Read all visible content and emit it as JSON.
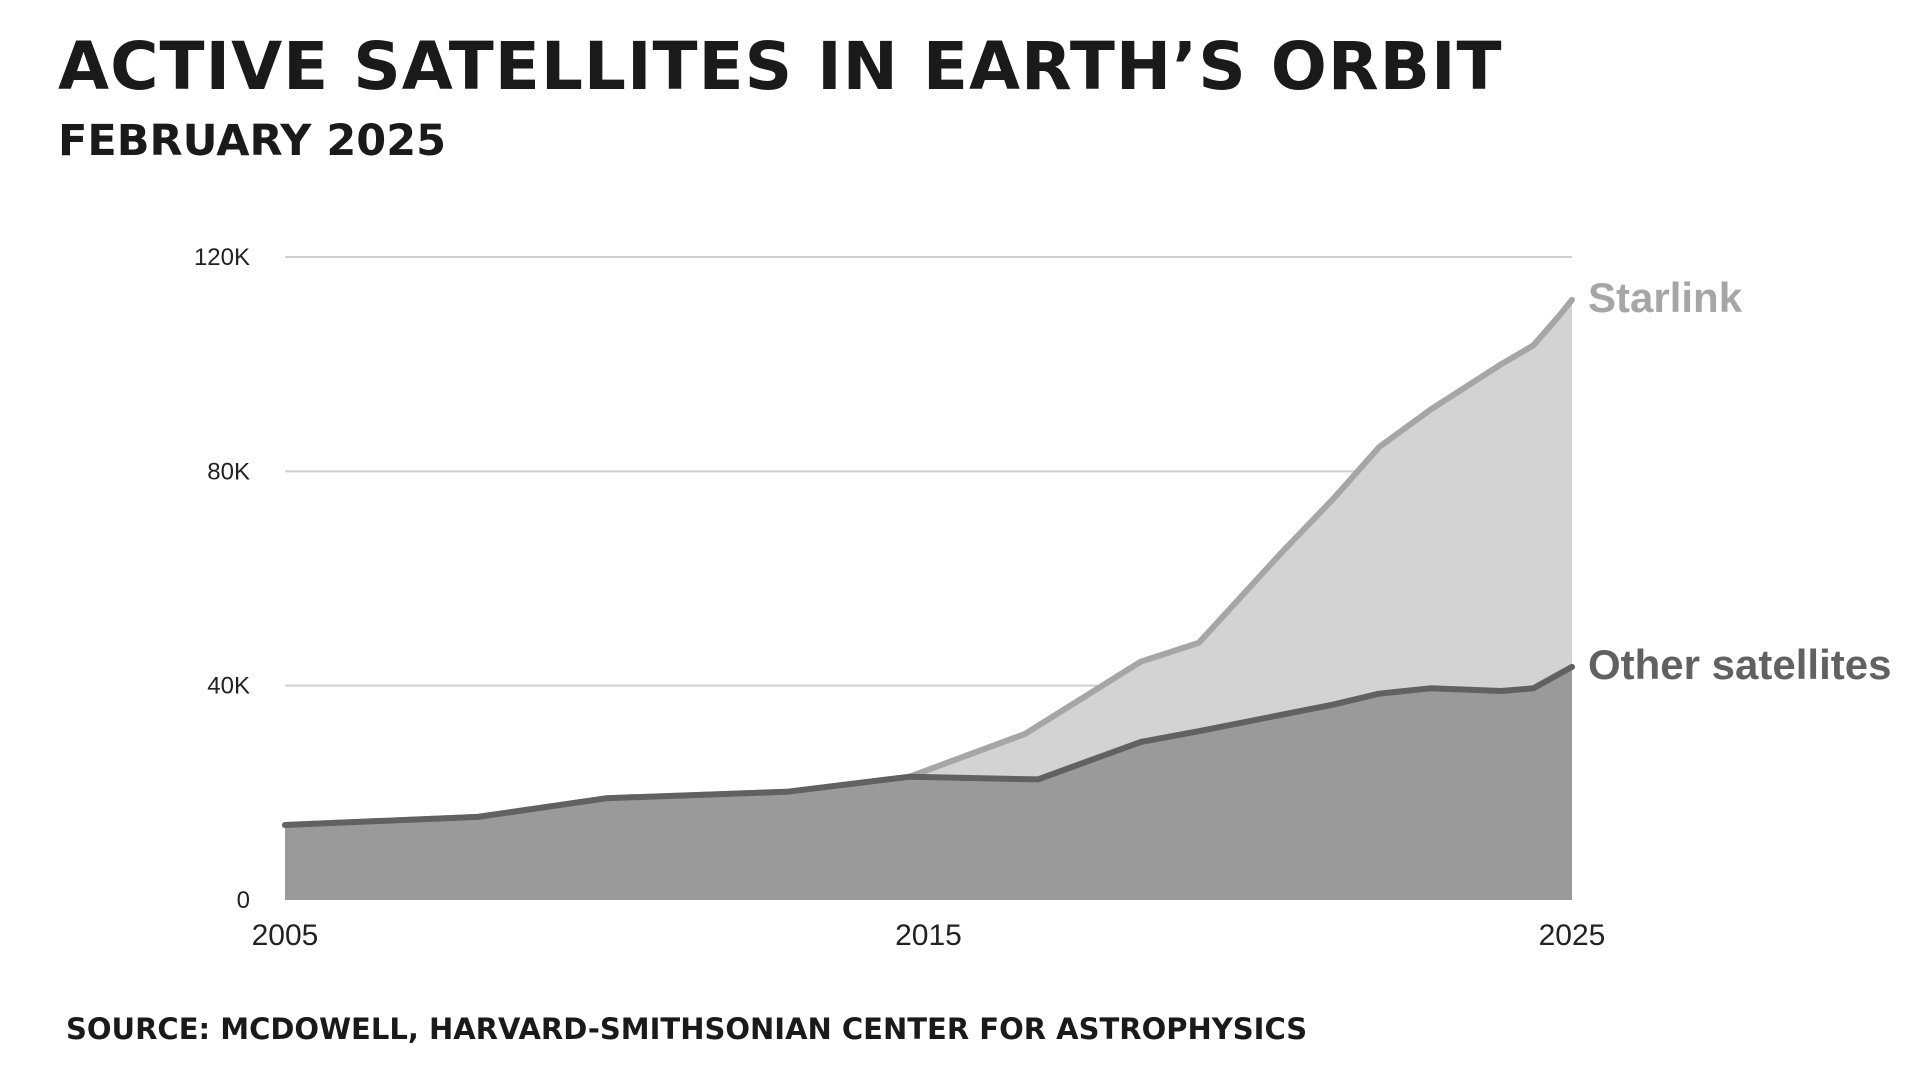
{
  "header": {
    "title": "ACTIVE SATELLITES IN EARTH’S ORBIT",
    "subtitle": "FEBRUARY 2025"
  },
  "footer": {
    "source": "SOURCE: MCDOWELL, HARVARD-SMITHSONIAN CENTER FOR ASTROPHYSICS"
  },
  "chart_data": {
    "type": "area",
    "stacked": false,
    "title": "ACTIVE SATELLITES IN EARTH’S ORBIT",
    "subtitle": "FEBRUARY 2025",
    "xlabel": "",
    "ylabel": "",
    "xlim": [
      2005,
      2025
    ],
    "ylim": [
      0,
      120000
    ],
    "x_ticks": [
      2005,
      2015,
      2025
    ],
    "x_tick_labels": [
      "2005",
      "2015",
      "2025"
    ],
    "y_ticks": [
      0,
      40000,
      80000,
      120000
    ],
    "y_tick_labels": [
      "0",
      "40K",
      "80K",
      "120K"
    ],
    "grid": "horizontal",
    "legend": "direct labels at right end of each series",
    "series": [
      {
        "name": "Starlink",
        "line_color": "#a6a6a6",
        "fill_color": "#d3d3d3",
        "x": [
          2005,
          2008,
          2010,
          2012.8,
          2014.7,
          2016.5,
          2018.3,
          2019.2,
          2020.5,
          2021.3,
          2022,
          2022.8,
          2023.9,
          2024.4,
          2024.8,
          2025
        ],
        "y": [
          14000,
          15500,
          19000,
          20200,
          23000,
          31000,
          44500,
          48000,
          65000,
          75000,
          84500,
          91500,
          100000,
          103500,
          109000,
          112000
        ]
      },
      {
        "name": "Other satellites",
        "line_color": "#616161",
        "fill_color": "#9a9a9a",
        "x": [
          2005,
          2008,
          2010,
          2012.8,
          2014.7,
          2016.7,
          2018.3,
          2019.2,
          2021.3,
          2022,
          2022.8,
          2023.9,
          2024.4,
          2025
        ],
        "y": [
          14000,
          15500,
          19000,
          20200,
          23000,
          22500,
          29500,
          31500,
          36500,
          38500,
          39500,
          39000,
          39500,
          43500
        ]
      }
    ]
  }
}
